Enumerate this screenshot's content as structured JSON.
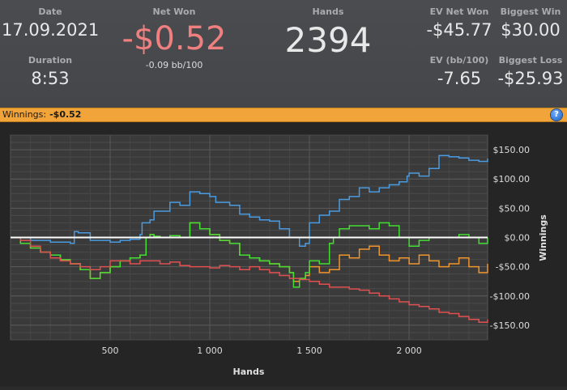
{
  "stats": {
    "date_label": "Date",
    "date_value": "17.09.2021",
    "duration_label": "Duration",
    "duration_value": "8:53",
    "net_won_label": "Net Won",
    "net_won_value": "-$0.52",
    "net_won_bb": "-0.09 bb/100",
    "hands_label": "Hands",
    "hands_value": "2394",
    "ev_net_won_label": "EV Net Won",
    "ev_net_won_value": "-$45.77",
    "ev_bb_label": "EV (bb/100)",
    "ev_bb_value": "-7.65",
    "biggest_win_label": "Biggest Win",
    "biggest_win_value": "$30.00",
    "biggest_loss_label": "Biggest Loss",
    "biggest_loss_value": "-$25.93"
  },
  "winnings_bar": {
    "label": "Winnings:",
    "value": "-$0.52",
    "help_icon": "?"
  },
  "colors": {
    "net_won_negative": "#f08080",
    "header_bar": "#f0a43a",
    "series_blue": "#4a9be0",
    "series_green": "#44dd33",
    "series_orange": "#f0952e",
    "series_red": "#e05050",
    "zero_line": "#ffffff"
  },
  "chart_data": {
    "type": "line",
    "xlabel": "Hands",
    "ylabel": "Winnings",
    "xlim": [
      0,
      2394
    ],
    "ylim": [
      -175,
      175
    ],
    "x_ticks": [
      500,
      1000,
      1500,
      2000
    ],
    "x_tick_labels": [
      "500",
      "1 000",
      "1 500",
      "2 000"
    ],
    "y_ticks": [
      150,
      100,
      50,
      0,
      -50,
      -100,
      -150
    ],
    "y_tick_labels": [
      "$150.00",
      "$100.00",
      "$50.00",
      "$0.00",
      "-$50.00",
      "-$100.00",
      "-$150.00"
    ],
    "grid": true,
    "series": [
      {
        "color": "#4a9be0",
        "x": [
          0,
          100,
          200,
          300,
          320,
          340,
          400,
          500,
          550,
          600,
          650,
          660,
          700,
          720,
          800,
          850,
          900,
          950,
          1000,
          1030,
          1100,
          1150,
          1200,
          1250,
          1300,
          1350,
          1400,
          1420,
          1450,
          1480,
          1500,
          1550,
          1600,
          1650,
          1700,
          1750,
          1800,
          1850,
          1900,
          1950,
          1990,
          2000,
          2050,
          2100,
          2150,
          2200,
          2250,
          2300,
          2350,
          2394
        ],
        "y": [
          0,
          -5,
          -8,
          -10,
          10,
          8,
          -5,
          -8,
          -5,
          -3,
          5,
          25,
          30,
          45,
          60,
          55,
          78,
          75,
          70,
          60,
          55,
          40,
          35,
          30,
          28,
          15,
          0,
          0,
          -15,
          -10,
          25,
          38,
          45,
          65,
          70,
          85,
          78,
          85,
          90,
          95,
          105,
          110,
          105,
          118,
          140,
          138,
          136,
          132,
          130,
          135
        ]
      },
      {
        "color": "#f0952e",
        "x": [
          0,
          50,
          100,
          150,
          200,
          250,
          300,
          350,
          400,
          450,
          500,
          550,
          600,
          650,
          680,
          700,
          720,
          750,
          800,
          850,
          900,
          950,
          1000,
          1050,
          1100,
          1150,
          1200,
          1250,
          1300,
          1350,
          1400,
          1420,
          1450,
          1480,
          1500,
          1550,
          1600,
          1650,
          1700,
          1750,
          1800,
          1850,
          1900,
          1950,
          2000,
          2050,
          2100,
          2150,
          2200,
          2250,
          2300,
          2350,
          2394
        ],
        "y": [
          0,
          -10,
          -18,
          -25,
          -30,
          -38,
          -45,
          -55,
          -70,
          -60,
          -50,
          -40,
          -35,
          -30,
          0,
          5,
          2,
          0,
          3,
          0,
          25,
          15,
          5,
          -5,
          -10,
          -30,
          -35,
          -40,
          -45,
          -50,
          -60,
          -75,
          -70,
          -65,
          -50,
          -60,
          -55,
          -30,
          -35,
          -20,
          -15,
          -30,
          -40,
          -35,
          -45,
          -30,
          -40,
          -50,
          -45,
          -35,
          -50,
          -60,
          -45
        ]
      },
      {
        "color": "#44dd33",
        "x": [
          0,
          50,
          100,
          150,
          200,
          250,
          300,
          350,
          400,
          450,
          500,
          550,
          600,
          650,
          680,
          700,
          720,
          750,
          800,
          850,
          900,
          950,
          1000,
          1050,
          1100,
          1150,
          1200,
          1250,
          1300,
          1350,
          1400,
          1420,
          1450,
          1480,
          1500,
          1550,
          1600,
          1620,
          1650,
          1700,
          1750,
          1800,
          1850,
          1900,
          1950,
          2000,
          2050,
          2100,
          2150,
          2200,
          2250,
          2300,
          2350,
          2394
        ],
        "y": [
          0,
          -10,
          -18,
          -25,
          -30,
          -38,
          -45,
          -55,
          -70,
          -60,
          -50,
          -40,
          -35,
          -30,
          0,
          5,
          2,
          0,
          3,
          0,
          25,
          15,
          5,
          -5,
          -10,
          -30,
          -35,
          -40,
          -45,
          -50,
          -60,
          -85,
          -70,
          -60,
          -40,
          -45,
          -10,
          0,
          15,
          20,
          20,
          15,
          25,
          20,
          0,
          -15,
          -5,
          0,
          0,
          0,
          5,
          0,
          -10,
          0
        ]
      },
      {
        "color": "#e05050",
        "x": [
          0,
          50,
          100,
          150,
          200,
          250,
          300,
          350,
          400,
          450,
          500,
          550,
          600,
          650,
          700,
          750,
          800,
          850,
          900,
          950,
          1000,
          1050,
          1100,
          1150,
          1200,
          1250,
          1300,
          1350,
          1400,
          1450,
          1500,
          1550,
          1600,
          1650,
          1700,
          1750,
          1800,
          1850,
          1900,
          1950,
          2000,
          2050,
          2100,
          2150,
          2200,
          2250,
          2300,
          2350,
          2394
        ],
        "y": [
          0,
          -5,
          -15,
          -25,
          -35,
          -40,
          -45,
          -50,
          -55,
          -50,
          -40,
          -40,
          -45,
          -40,
          -40,
          -45,
          -42,
          -48,
          -50,
          -50,
          -52,
          -48,
          -50,
          -55,
          -50,
          -55,
          -60,
          -65,
          -70,
          -72,
          -75,
          -80,
          -85,
          -85,
          -88,
          -90,
          -95,
          -100,
          -105,
          -110,
          -115,
          -118,
          -122,
          -128,
          -130,
          -135,
          -140,
          -145,
          -140
        ]
      }
    ],
    "zero_line": 0
  }
}
